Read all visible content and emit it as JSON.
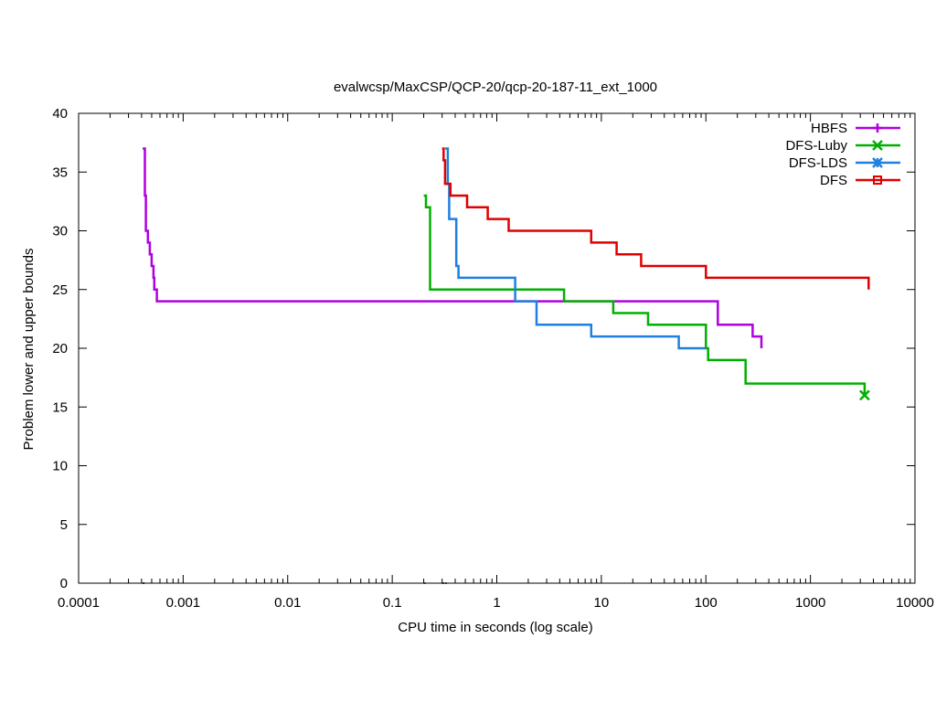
{
  "chart_data": {
    "type": "line",
    "title": "evalwcsp/MaxCSP/QCP-20/qcp-20-187-11_ext_1000",
    "xlabel": "CPU time in seconds (log scale)",
    "ylabel": "Problem lower and upper bounds",
    "xscale": "log",
    "xlim": [
      0.0001,
      10000
    ],
    "ylim": [
      0,
      40
    ],
    "xticks": [
      0.0001,
      0.001,
      0.01,
      0.1,
      1,
      10,
      100,
      1000,
      10000
    ],
    "xtick_labels": [
      "0.0001",
      "0.001",
      "0.01",
      "0.1",
      "1",
      "10",
      "100",
      "1000",
      "10000"
    ],
    "yticks": [
      0,
      5,
      10,
      15,
      20,
      25,
      30,
      35,
      40
    ],
    "ytick_labels": [
      "0",
      "5",
      "10",
      "15",
      "20",
      "25",
      "30",
      "35",
      "40"
    ],
    "legend_position": "top-right",
    "series": [
      {
        "name": "HBFS",
        "color": "#b000e0",
        "marker": "plus",
        "points": [
          [
            0.00041,
            37
          ],
          [
            0.00043,
            33
          ],
          [
            0.00044,
            30
          ],
          [
            0.00046,
            29
          ],
          [
            0.00048,
            28
          ],
          [
            0.0005,
            27
          ],
          [
            0.00052,
            26
          ],
          [
            0.00053,
            25
          ],
          [
            0.00056,
            24
          ],
          [
            130,
            22
          ],
          [
            280,
            21
          ],
          [
            340,
            20
          ]
        ],
        "end_x": 340,
        "lower_bound_x": 0.00041
      },
      {
        "name": "DFS-Luby",
        "color": "#00b000",
        "marker": "x",
        "points": [
          [
            0.2,
            33
          ],
          [
            0.21,
            32
          ],
          [
            0.23,
            25
          ],
          [
            4.4,
            24
          ],
          [
            13,
            23
          ],
          [
            28,
            22
          ],
          [
            100,
            20
          ],
          [
            105,
            19
          ],
          [
            240,
            17
          ],
          [
            3300,
            16
          ]
        ],
        "end_x": 3300,
        "lower_bound_x": 0.2
      },
      {
        "name": "DFS-LDS",
        "color": "#1f80e0",
        "marker": "star",
        "points": [
          [
            0.32,
            37
          ],
          [
            0.34,
            34
          ],
          [
            0.35,
            31
          ],
          [
            0.41,
            27
          ],
          [
            0.43,
            26
          ],
          [
            1.5,
            24
          ],
          [
            2.4,
            22
          ],
          [
            8,
            21
          ],
          [
            55,
            20
          ]
        ],
        "end_x": 100,
        "lower_bound_x": 0.32
      },
      {
        "name": "DFS",
        "color": "#e00000",
        "marker": "square",
        "points": [
          [
            0.3,
            37
          ],
          [
            0.31,
            36
          ],
          [
            0.32,
            34
          ],
          [
            0.36,
            33
          ],
          [
            0.52,
            32
          ],
          [
            0.82,
            31
          ],
          [
            1.3,
            30
          ],
          [
            8,
            29
          ],
          [
            14,
            28
          ],
          [
            24,
            27
          ],
          [
            100,
            26
          ],
          [
            3600,
            25
          ]
        ],
        "end_x": 3600,
        "lower_bound_x": 0.3
      }
    ]
  }
}
